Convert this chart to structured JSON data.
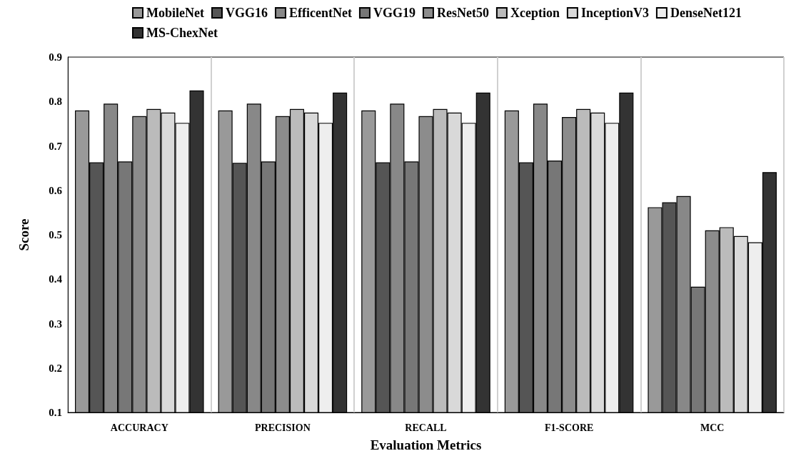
{
  "chart_data": {
    "type": "bar",
    "xlabel": "Evaluation Metrics",
    "ylabel": "Score",
    "categories": [
      "ACCURACY",
      "PRECISION",
      "RECALL",
      "F1-SCORE",
      "MCC"
    ],
    "series": [
      {
        "name": "MobileNet",
        "color": "#999999",
        "values": [
          0.78,
          0.78,
          0.78,
          0.78,
          0.562
        ]
      },
      {
        "name": "VGG16",
        "color": "#555555",
        "values": [
          0.663,
          0.662,
          0.663,
          0.663,
          0.573
        ]
      },
      {
        "name": "EfficentNet",
        "color": "#888888",
        "values": [
          0.795,
          0.795,
          0.795,
          0.795,
          0.587
        ]
      },
      {
        "name": "VGG19",
        "color": "#777777",
        "values": [
          0.665,
          0.665,
          0.665,
          0.667,
          0.383
        ]
      },
      {
        "name": "ResNet50",
        "color": "#8c8c8c",
        "values": [
          0.767,
          0.767,
          0.767,
          0.765,
          0.51
        ]
      },
      {
        "name": "Xception",
        "color": "#bbbbbb",
        "values": [
          0.783,
          0.783,
          0.783,
          0.783,
          0.517
        ]
      },
      {
        "name": "InceptionV3",
        "color": "#d9d9d9",
        "values": [
          0.775,
          0.775,
          0.775,
          0.775,
          0.497
        ]
      },
      {
        "name": "DenseNet121",
        "color": "#eeeeee",
        "values": [
          0.752,
          0.752,
          0.752,
          0.752,
          0.483
        ]
      },
      {
        "name": "MS-ChexNet",
        "color": "#333333",
        "values": [
          0.825,
          0.82,
          0.82,
          0.82,
          0.641
        ]
      }
    ],
    "ylim": [
      0.1,
      0.9
    ],
    "yticks": [
      0.1,
      0.2,
      0.3,
      0.4,
      0.5,
      0.6,
      0.7,
      0.8,
      0.9
    ],
    "grid": "x",
    "legend": "top"
  }
}
